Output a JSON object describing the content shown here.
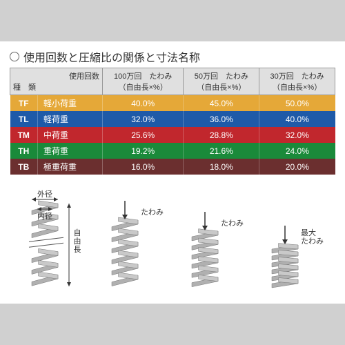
{
  "title": "使用回数と圧縮比の関係と寸法名称",
  "background_color": "#ffffff",
  "outer_background": "#d0d0d0",
  "table": {
    "header_bg": "#e0e0e0",
    "columns": [
      {
        "line1": "",
        "line2": "種　類"
      },
      {
        "line1": "使用回数",
        "line2": ""
      },
      {
        "line1": "100万回　たわみ",
        "line2": "（自由長×%）"
      },
      {
        "line1": "50万回　たわみ",
        "line2": "（自由長×%）"
      },
      {
        "line1": "30万回　たわみ",
        "line2": "（自由長×%）"
      }
    ],
    "rows": [
      {
        "code": "TF",
        "label": "軽小荷重",
        "vals": [
          "40.0%",
          "45.0%",
          "50.0%"
        ],
        "bg": "#e5a838"
      },
      {
        "code": "TL",
        "label": "軽荷重",
        "vals": [
          "32.0%",
          "36.0%",
          "40.0%"
        ],
        "bg": "#1e5aa8"
      },
      {
        "code": "TM",
        "label": "中荷重",
        "vals": [
          "25.6%",
          "28.8%",
          "32.0%"
        ],
        "bg": "#c1272d"
      },
      {
        "code": "TH",
        "label": "重荷重",
        "vals": [
          "19.2%",
          "21.6%",
          "24.0%"
        ],
        "bg": "#1a8a3a"
      },
      {
        "code": "TB",
        "label": "極重荷重",
        "vals": [
          "16.0%",
          "18.0%",
          "20.0%"
        ],
        "bg": "#6b2f2f"
      }
    ]
  },
  "diagrams": {
    "spring_color": "#b0b0b0",
    "text_color": "#333333",
    "label_outer": "外径",
    "label_inner": "内径",
    "label_free": "自由長",
    "label_defl": "たわみ",
    "label_max": "最大",
    "heights": [
      120,
      96,
      80,
      60
    ]
  }
}
